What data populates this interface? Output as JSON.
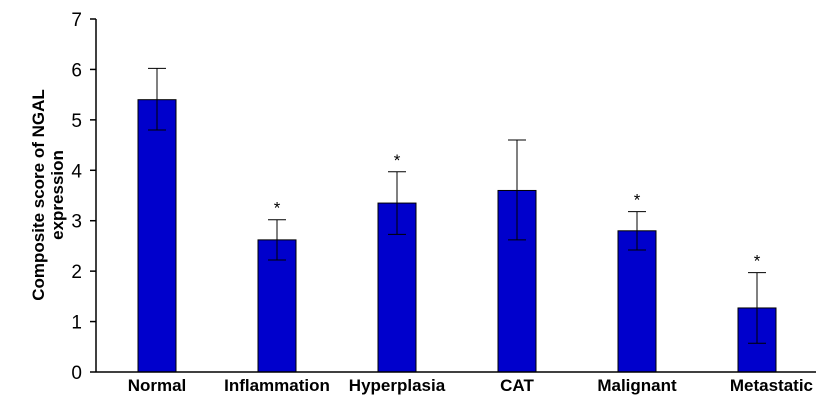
{
  "chart_data": {
    "type": "bar",
    "categories": [
      "Normal",
      "Inflammation",
      "Hyperplasia",
      "CAT",
      "Malignant",
      "Metastatic"
    ],
    "values": [
      5.4,
      2.62,
      3.35,
      3.6,
      2.8,
      1.27
    ],
    "error_upper": [
      6.02,
      3.02,
      3.97,
      4.6,
      3.18,
      1.97
    ],
    "error_lower": [
      4.8,
      2.22,
      2.73,
      2.62,
      2.42,
      0.57
    ],
    "significance": [
      "",
      "*",
      "*",
      "",
      "*",
      "*"
    ],
    "title": "",
    "xlabel": "",
    "ylabel_lines": [
      "Composite score of NGAL",
      "expression"
    ],
    "ylim": [
      0,
      7
    ],
    "yticks": [
      "0",
      "1",
      "2",
      "3",
      "4",
      "5",
      "6",
      "7"
    ],
    "grid": false,
    "bar_color": "#0000cc"
  }
}
